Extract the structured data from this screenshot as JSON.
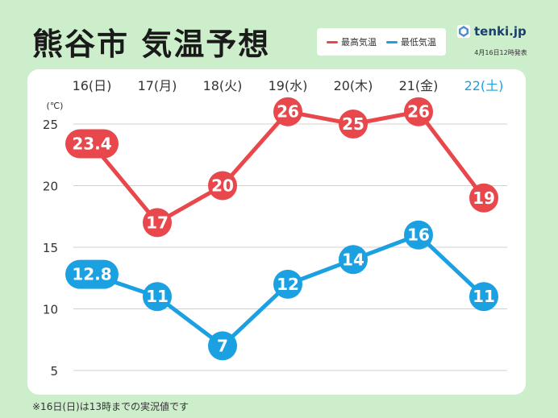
{
  "title": "熊谷市 気温予想",
  "legend": {
    "high_label": "最高気温",
    "low_label": "最低気温"
  },
  "brand": {
    "name": "tenki.jp",
    "publish_time": "4月16日12時発表"
  },
  "footnote": "※16日(日)は13時までの実況値です",
  "colors": {
    "high": "#e8474b",
    "low": "#1ba1e2",
    "saturday": "#1ba1e2",
    "sunday": "#333333",
    "background": "#cdeecb"
  },
  "chart_data": {
    "type": "line",
    "categories": [
      "16(日)",
      "17(月)",
      "18(火)",
      "19(水)",
      "20(木)",
      "21(金)",
      "22(土)"
    ],
    "series": [
      {
        "name": "最高気温",
        "key": "high",
        "values": [
          23.4,
          17,
          20,
          26,
          25,
          26,
          19
        ]
      },
      {
        "name": "最低気温",
        "key": "low",
        "values": [
          12.8,
          11,
          7,
          12,
          14,
          16,
          11
        ]
      }
    ],
    "ylabel": "(℃)",
    "yticks": [
      5,
      10,
      15,
      20,
      25
    ],
    "ylim": [
      5,
      25
    ],
    "grid": true
  }
}
